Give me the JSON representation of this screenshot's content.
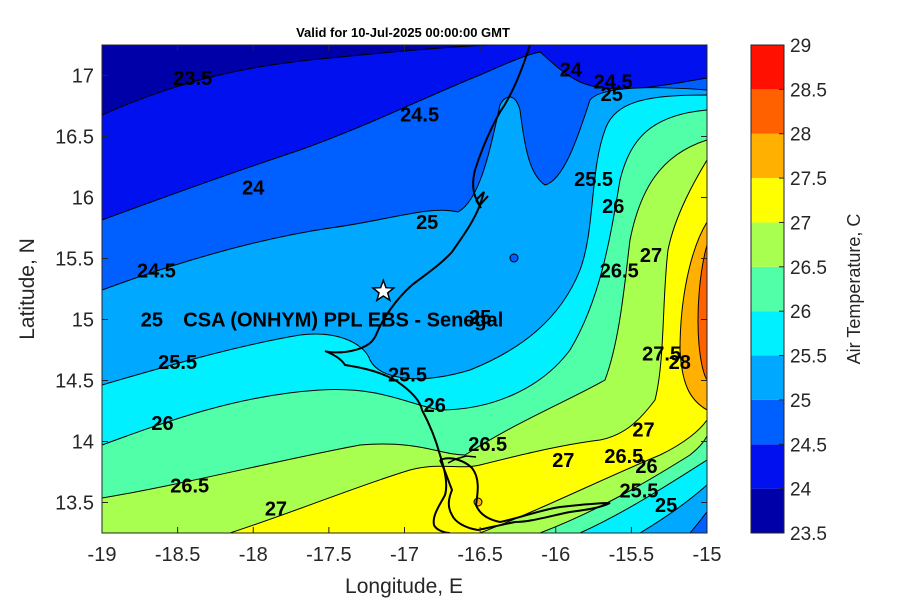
{
  "chart_data": {
    "type": "heatmap",
    "title": "Valid for 10-Jul-2025 00:00:00 GMT",
    "xlabel": "Longitude, E",
    "ylabel": "Latitude, N",
    "xlim": [
      -19,
      -15
    ],
    "ylim": [
      13.25,
      17.25
    ],
    "x_ticks": [
      "-19",
      "-18.5",
      "-18",
      "-17.5",
      "-17",
      "-16.5",
      "-16",
      "-15.5",
      "-15"
    ],
    "y_ticks": [
      "13.5",
      "14",
      "14.5",
      "15",
      "15.5",
      "16",
      "16.5",
      "17"
    ],
    "colorbar": {
      "label": "Air Temperature, C",
      "levels": [
        23.5,
        24,
        24.5,
        25,
        25.5,
        26,
        26.5,
        27,
        27.5,
        28,
        28.5,
        29
      ],
      "tick_labels": [
        "23.5",
        "24",
        "24.5",
        "25",
        "25.5",
        "26",
        "26.5",
        "27",
        "27.5",
        "28",
        "28.5",
        "29"
      ],
      "colors": [
        "#0000a8",
        "#0010ee",
        "#0060ff",
        "#00a8ff",
        "#00f0ff",
        "#50ffa8",
        "#a8ff50",
        "#ffff00",
        "#ffb000",
        "#ff6000",
        "#ff1000",
        "#b00000"
      ]
    },
    "contour_labels": [
      {
        "text": "23.5",
        "lon": -18.4,
        "lat": 16.98
      },
      {
        "text": "24",
        "lon": -18.0,
        "lat": 16.08
      },
      {
        "text": "24.5",
        "lon": -18.64,
        "lat": 15.4
      },
      {
        "text": "25",
        "lon": -18.67,
        "lat": 15.0
      },
      {
        "text": "25.5",
        "lon": -18.5,
        "lat": 14.65
      },
      {
        "text": "26",
        "lon": -18.6,
        "lat": 14.15
      },
      {
        "text": "26.5",
        "lon": -18.42,
        "lat": 13.64
      },
      {
        "text": "27",
        "lon": -17.85,
        "lat": 13.45
      },
      {
        "text": "24.5",
        "lon": -16.9,
        "lat": 16.68
      },
      {
        "text": "25",
        "lon": -16.85,
        "lat": 15.8
      },
      {
        "text": "25",
        "lon": -16.5,
        "lat": 15.02
      },
      {
        "text": "25.5",
        "lon": -16.98,
        "lat": 14.55
      },
      {
        "text": "26",
        "lon": -16.8,
        "lat": 14.3
      },
      {
        "text": "26.5",
        "lon": -16.45,
        "lat": 13.98
      },
      {
        "text": "27",
        "lon": -15.95,
        "lat": 13.85
      },
      {
        "text": "24",
        "lon": -15.9,
        "lat": 17.05
      },
      {
        "text": "24.5",
        "lon": -15.62,
        "lat": 16.95
      },
      {
        "text": "25",
        "lon": -15.63,
        "lat": 16.85
      },
      {
        "text": "25.5",
        "lon": -15.75,
        "lat": 16.15
      },
      {
        "text": "26",
        "lon": -15.62,
        "lat": 15.93
      },
      {
        "text": "26.5",
        "lon": -15.58,
        "lat": 15.4
      },
      {
        "text": "27",
        "lon": -15.37,
        "lat": 15.53
      },
      {
        "text": "27.5",
        "lon": -15.3,
        "lat": 14.72
      },
      {
        "text": "28",
        "lon": -15.18,
        "lat": 14.65
      },
      {
        "text": "27",
        "lon": -15.42,
        "lat": 14.1
      },
      {
        "text": "26.5",
        "lon": -15.55,
        "lat": 13.88
      },
      {
        "text": "26",
        "lon": -15.4,
        "lat": 13.8
      },
      {
        "text": "25.5",
        "lon": -15.45,
        "lat": 13.6
      },
      {
        "text": "25",
        "lon": -15.27,
        "lat": 13.48
      }
    ],
    "markers": [
      {
        "label": "CSA (ONHYM) PPL EBS - Senegal",
        "symbol": "star",
        "lon": -17.14,
        "lat": 15.23
      }
    ],
    "grid": false,
    "legend": "none"
  }
}
